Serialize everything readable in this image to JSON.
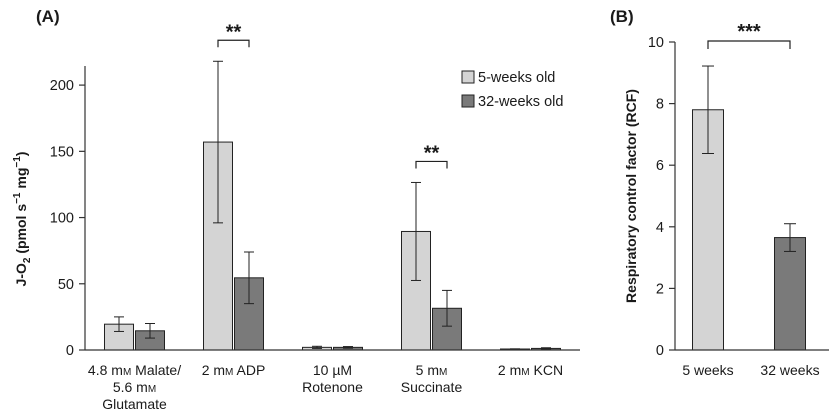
{
  "colors": {
    "series_light": "#d4d4d4",
    "series_dark": "#7a7a7a",
    "stroke": "#222222",
    "axis": "#333333",
    "text": "#1a1a1a"
  },
  "chart_data": [
    {
      "panel_label": "(A)",
      "type": "bar",
      "ylabel_main": "J-O",
      "ylabel_sub": "2",
      "ylabel_units_open": " (pmol s",
      "ylabel_sup1": "−1",
      "ylabel_units_mid": " mg",
      "ylabel_sup2": "−1",
      "ylabel_units_close": ")",
      "ylim": [
        0,
        225
      ],
      "yticks": [
        "0",
        "50",
        "100",
        "150",
        "200"
      ],
      "ytick_values": [
        0,
        50,
        100,
        150,
        200
      ],
      "legend_position": "top-right",
      "categories": [
        [
          "4.8 mM Malate/",
          "5.6 mM",
          "Glutamate"
        ],
        [
          "2 mM ADP"
        ],
        [
          "10 µM",
          "Rotenone"
        ],
        [
          "5 mM",
          "Succinate"
        ],
        [
          "2 mM KCN"
        ]
      ],
      "series": [
        {
          "name": "5-weeks old",
          "values": [
            19.5,
            157,
            2,
            89.5,
            0.5
          ],
          "errors": [
            5.5,
            61,
            0.8,
            37,
            0.4
          ]
        },
        {
          "name": "32-weeks old",
          "values": [
            14.5,
            54.5,
            2,
            31.5,
            1.2
          ],
          "errors": [
            5.5,
            19.5,
            0.6,
            13.5,
            0.5
          ]
        }
      ],
      "significance": [
        {
          "category_index": 1,
          "label": "**"
        },
        {
          "category_index": 3,
          "label": "**"
        }
      ]
    },
    {
      "panel_label": "(B)",
      "type": "bar",
      "ylabel": "Respiratory control factor (RCF)",
      "ylim": [
        0,
        10
      ],
      "yticks": [
        "0",
        "2",
        "4",
        "6",
        "8",
        "10"
      ],
      "ytick_values": [
        0,
        2,
        4,
        6,
        8,
        10
      ],
      "categories": [
        "5 weeks",
        "32 weeks"
      ],
      "values": [
        7.8,
        3.65
      ],
      "errors": [
        1.42,
        0.45
      ],
      "significance": [
        {
          "label": "***"
        }
      ]
    }
  ]
}
